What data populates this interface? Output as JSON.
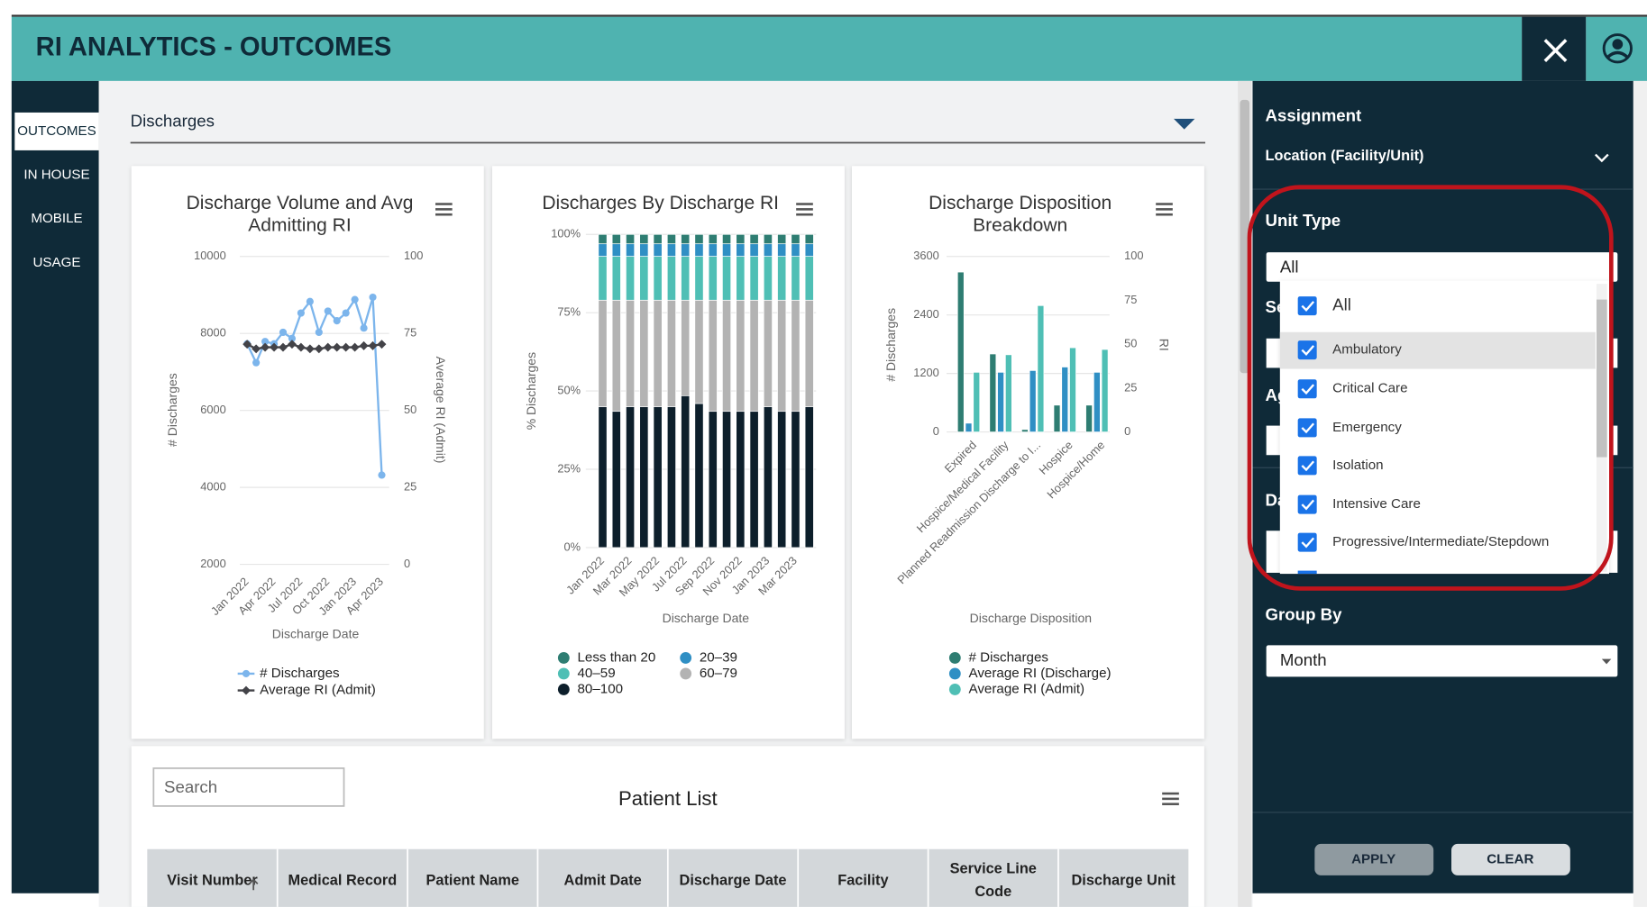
{
  "header": {
    "title": "RI ANALYTICS - OUTCOMES"
  },
  "nav": [
    "OUTCOMES",
    "IN HOUSE",
    "MOBILE",
    "USAGE"
  ],
  "section": {
    "title": "Discharges"
  },
  "chart_data": [
    {
      "type": "line",
      "title": "Discharge Volume and Avg Admitting RI",
      "categories": [
        "Jan 2022",
        null,
        null,
        "Apr 2022",
        null,
        null,
        "Jul 2022",
        null,
        null,
        "Oct 2022",
        null,
        null,
        "Jan 2023",
        null,
        null,
        "Apr 2023"
      ],
      "xlabel": "Discharge Date",
      "ylabel": "# Discharges",
      "y2label": "Average RI (Admit)",
      "ylim": [
        2000,
        10000
      ],
      "yticks": [
        2000,
        4000,
        6000,
        8000,
        10000
      ],
      "y2lim": [
        0,
        100
      ],
      "y2ticks": [
        0,
        25,
        50,
        75,
        100
      ],
      "grid": true,
      "series": [
        {
          "name": "# Discharges",
          "color": "#7cb5ec",
          "values": [
            7730,
            7240,
            7790,
            7730,
            8030,
            7870,
            8530,
            8830,
            8030,
            8580,
            8330,
            8530,
            8880,
            8140,
            8940,
            4320
          ]
        },
        {
          "name": "Average RI (Admit)",
          "color": "#434348",
          "axis": "y2",
          "values": [
            71.5,
            70,
            70.5,
            70.5,
            70.5,
            71.5,
            70.5,
            70,
            70,
            70.5,
            70.5,
            70.5,
            70.5,
            71,
            71,
            71.5
          ]
        }
      ]
    },
    {
      "type": "stacked_bar",
      "title": "Discharges By Discharge RI",
      "categories": [
        "Jan 2022",
        null,
        "Mar 2022",
        null,
        "May 2022",
        null,
        "Jul 2022",
        null,
        "Sep 2022",
        null,
        "Nov 2022",
        null,
        "Jan 2023",
        null,
        "Mar 2023",
        null
      ],
      "xlabel": "Discharge Date",
      "ylabel": "% Discharges",
      "ylim": [
        0,
        100
      ],
      "yticks": [
        {
          "value": 0,
          "label": "0%"
        },
        {
          "value": 25,
          "label": "25%"
        },
        {
          "value": 50,
          "label": "50%"
        },
        {
          "value": 75,
          "label": "75%"
        },
        {
          "value": 100,
          "label": "100%"
        }
      ],
      "grid": true,
      "series": [
        {
          "name": "Less than 20",
          "color": "#2e7d72",
          "values": [
            3,
            3,
            3,
            3,
            3,
            3,
            3,
            3,
            3,
            3,
            3,
            3,
            3,
            3,
            3,
            3
          ]
        },
        {
          "name": "20–39",
          "color": "#2f8fc4",
          "values": [
            4,
            4,
            4,
            4,
            4,
            4,
            4,
            4,
            4,
            4,
            4,
            4,
            4,
            4,
            4,
            4
          ]
        },
        {
          "name": "40–59",
          "color": "#4fbfb5",
          "values": [
            14,
            14,
            14,
            14,
            14,
            14,
            14,
            14,
            14,
            14,
            14,
            14,
            14,
            14,
            14,
            14
          ]
        },
        {
          "name": "60–79",
          "color": "#b3b3b3",
          "values": [
            34,
            35.5,
            34,
            34,
            34,
            34,
            30.5,
            33,
            35.5,
            35.5,
            35.5,
            35.5,
            34,
            35.5,
            35.5,
            34
          ]
        },
        {
          "name": "80–100",
          "color": "#0d1f2b",
          "values": [
            45,
            43.5,
            45,
            45,
            45,
            45,
            48.5,
            46,
            43.5,
            43.5,
            43.5,
            43.5,
            45,
            43.5,
            43.5,
            45
          ]
        }
      ]
    },
    {
      "type": "bar",
      "title": "Discharge Disposition Breakdown",
      "categories": [
        "Expired",
        "Hospice/Medical Facility",
        "Planned Readmission Discharge to I...",
        "Hospice",
        "Hospice/Home"
      ],
      "xlabel": "Discharge Disposition",
      "ylabel": "# Discharges",
      "y2label": "RI",
      "ylim": [
        0,
        3600
      ],
      "yticks": [
        0,
        1200,
        2400,
        3600
      ],
      "y2lim": [
        0,
        100
      ],
      "y2ticks": [
        0,
        25,
        50,
        75,
        100
      ],
      "grid": true,
      "series": [
        {
          "name": "# Discharges",
          "color": "#2e7d72",
          "values": [
            3280,
            1600,
            50,
            550,
            550
          ]
        },
        {
          "name": "Average RI (Discharge)",
          "color": "#2f8fc4",
          "axis": "y2",
          "values": [
            5,
            34,
            35,
            37,
            34
          ]
        },
        {
          "name": "Average RI (Admit)",
          "color": "#4fbfb5",
          "axis": "y2",
          "values": [
            34,
            44,
            72,
            48,
            47
          ]
        }
      ]
    }
  ],
  "patient_list": {
    "search_placeholder": "Search",
    "title": "Patient List",
    "columns": [
      "Visit Number",
      "Medical Record",
      "Patient Name",
      "Admit Date",
      "Discharge Date",
      "Facility",
      "Service Line Code",
      "Discharge Unit"
    ]
  },
  "filters": {
    "assignment": "Assignment",
    "location": "Location (Facility/Unit)",
    "unit_type": "Unit Type",
    "unit_type_value": "All",
    "hidden_labels": [
      "Se",
      "Ag",
      "Da"
    ],
    "options": [
      "All",
      "Ambulatory",
      "Critical Care",
      "Emergency",
      "Isolation",
      "Intensive Care",
      "Progressive/Intermediate/Stepdown"
    ],
    "group_by": "Group By",
    "group_by_value": "Month",
    "apply": "APPLY",
    "clear": "CLEAR"
  }
}
